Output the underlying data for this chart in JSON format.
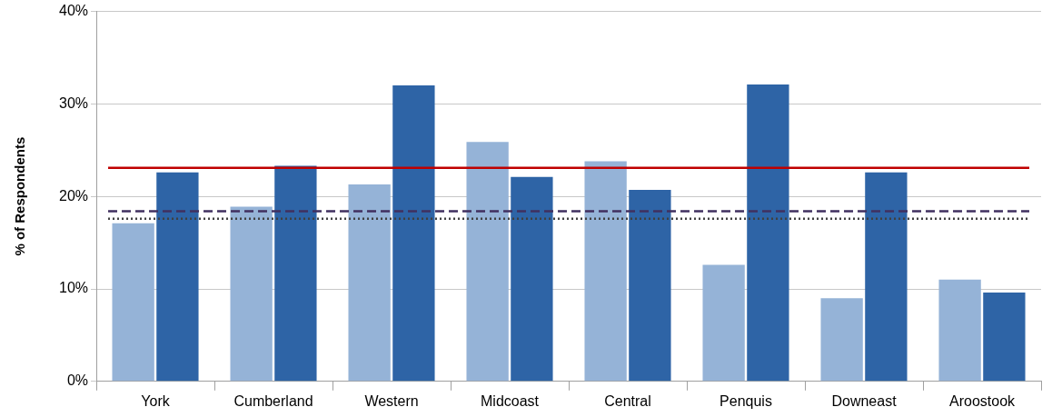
{
  "chart_data": {
    "type": "bar",
    "ylabel": "% of Respondents",
    "categories": [
      "York",
      "Cumberland",
      "Western",
      "Midcoast",
      "Central",
      "Penquis",
      "Downeast",
      "Aroostook"
    ],
    "series": [
      {
        "color": "#95b3d7",
        "values": [
          17.1,
          18.9,
          21.3,
          25.9,
          23.8,
          12.6,
          9.0,
          11.0
        ]
      },
      {
        "color": "#2e64a6",
        "values": [
          22.6,
          23.3,
          32.0,
          22.1,
          20.7,
          32.1,
          22.6,
          9.6
        ]
      }
    ],
    "ylim": [
      0,
      40
    ],
    "yticks": [
      {
        "value": 0,
        "label": "0%"
      },
      {
        "value": 10,
        "label": "10%"
      },
      {
        "value": 20,
        "label": "20%"
      },
      {
        "value": 30,
        "label": "30%"
      },
      {
        "value": 40,
        "label": "40%"
      }
    ],
    "grid": "y",
    "legend": false,
    "ref_lines": [
      {
        "axis": "y",
        "value": 23.1,
        "color": "#c00000",
        "line_style": "solid"
      },
      {
        "axis": "y",
        "value": 18.4,
        "color": "#403060",
        "line_style": "dashed"
      },
      {
        "axis": "y",
        "value": 17.6,
        "color": "#404040",
        "line_style": "dotted"
      }
    ]
  }
}
